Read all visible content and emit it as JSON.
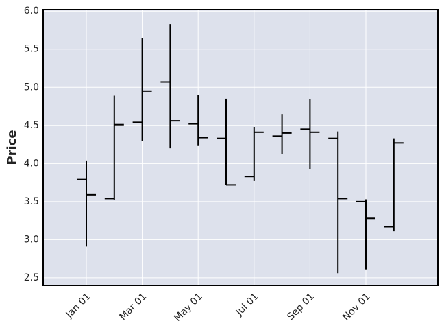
{
  "chart_data": {
    "type": "ohlc",
    "y_label": "Price",
    "categories": [
      "Jan 01",
      null,
      "Mar 01",
      null,
      "May 01",
      null,
      "Jul 01",
      null,
      "Sep 01",
      null,
      "Nov 01",
      null
    ],
    "open": [
      3.79,
      3.54,
      4.54,
      5.07,
      4.52,
      4.33,
      3.83,
      4.36,
      4.45,
      4.33,
      3.5,
      3.17
    ],
    "high": [
      4.04,
      4.89,
      5.65,
      5.83,
      4.9,
      4.85,
      4.48,
      4.65,
      4.84,
      4.42,
      3.53,
      4.33
    ],
    "low": [
      2.91,
      3.52,
      4.3,
      4.2,
      4.23,
      3.72,
      3.77,
      4.12,
      3.93,
      2.56,
      2.61,
      3.11
    ],
    "close": [
      3.59,
      4.51,
      4.95,
      4.56,
      4.34,
      3.72,
      4.41,
      4.4,
      4.41,
      3.54,
      3.28,
      4.27
    ],
    "color": "#000000",
    "background": "#dde1ec",
    "ylim": [
      2.4,
      6.02
    ],
    "yticks": [
      {
        "value": 2.5,
        "label": "2.5"
      },
      {
        "value": 3,
        "label": "3.0"
      },
      {
        "value": 3.5,
        "label": "3.5"
      },
      {
        "value": 4,
        "label": "4.0"
      },
      {
        "value": 4.5,
        "label": "4.5"
      },
      {
        "value": 5,
        "label": "5.0"
      },
      {
        "value": 5.5,
        "label": "5.5"
      },
      {
        "value": 6,
        "label": "6.0"
      }
    ],
    "grid": true
  }
}
